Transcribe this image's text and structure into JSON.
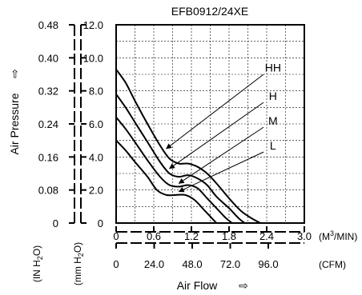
{
  "chart_data": {
    "type": "line",
    "title": "EFB0912/24XE",
    "ylabel": "Air Pressure",
    "ylabel_arrow": "⇨",
    "xlabel": "Air Flow",
    "xlabel_arrow": "⇨",
    "units": {
      "y_in": "(IN H2O)",
      "y_mm": "(mm H2O)",
      "x_m3": "(M3/MIN)",
      "x_cfm": "(CFM)"
    },
    "ylim": [
      0,
      12
    ],
    "xlim": [
      0,
      3.0
    ],
    "grid": true,
    "y_ticks_mm": [
      "12.0",
      "10.0",
      "8.0",
      "6.0",
      "4.0",
      "2.0",
      "0"
    ],
    "y_ticks_in": [
      "0.48",
      "0.40",
      "0.32",
      "0.24",
      "0.16",
      "0.08",
      "0"
    ],
    "x_ticks_m3": [
      "0",
      "0.6",
      "1.2",
      "1.8",
      "2.4",
      "3.0"
    ],
    "x_ticks_cfm": [
      "0",
      "24.0",
      "48.0",
      "72.0",
      "96.0"
    ],
    "series": [
      {
        "name": "HH",
        "points": [
          [
            0,
            9.3
          ],
          [
            0.15,
            8.5
          ],
          [
            0.3,
            7.4
          ],
          [
            0.5,
            6.0
          ],
          [
            0.7,
            4.7
          ],
          [
            0.85,
            3.9
          ],
          [
            1.0,
            3.6
          ],
          [
            1.15,
            3.6
          ],
          [
            1.3,
            3.4
          ],
          [
            1.45,
            3.0
          ],
          [
            1.6,
            2.4
          ],
          [
            1.8,
            1.5
          ],
          [
            2.0,
            0.7
          ],
          [
            2.2,
            0.2
          ],
          [
            2.3,
            0
          ]
        ]
      },
      {
        "name": "H",
        "points": [
          [
            0,
            7.8
          ],
          [
            0.15,
            7.0
          ],
          [
            0.3,
            6.1
          ],
          [
            0.5,
            4.9
          ],
          [
            0.7,
            3.7
          ],
          [
            0.85,
            3.0
          ],
          [
            1.0,
            2.8
          ],
          [
            1.15,
            2.9
          ],
          [
            1.3,
            2.7
          ],
          [
            1.45,
            2.3
          ],
          [
            1.6,
            1.6
          ],
          [
            1.8,
            0.9
          ],
          [
            1.95,
            0.3
          ],
          [
            2.05,
            0
          ]
        ]
      },
      {
        "name": "M",
        "points": [
          [
            0,
            6.4
          ],
          [
            0.15,
            5.7
          ],
          [
            0.3,
            4.9
          ],
          [
            0.5,
            3.8
          ],
          [
            0.7,
            2.8
          ],
          [
            0.85,
            2.3
          ],
          [
            1.0,
            2.2
          ],
          [
            1.15,
            2.3
          ],
          [
            1.3,
            2.1
          ],
          [
            1.45,
            1.5
          ],
          [
            1.6,
            0.9
          ],
          [
            1.75,
            0.3
          ],
          [
            1.85,
            0
          ]
        ]
      },
      {
        "name": "L",
        "points": [
          [
            0,
            5.0
          ],
          [
            0.15,
            4.4
          ],
          [
            0.3,
            3.7
          ],
          [
            0.5,
            2.8
          ],
          [
            0.65,
            2.0
          ],
          [
            0.8,
            1.7
          ],
          [
            0.95,
            1.7
          ],
          [
            1.1,
            1.7
          ],
          [
            1.25,
            1.4
          ],
          [
            1.4,
            0.8
          ],
          [
            1.55,
            0.2
          ],
          [
            1.6,
            0
          ]
        ]
      }
    ],
    "labels": [
      {
        "name": "HH",
        "x": 2.5,
        "y": 9.4
      },
      {
        "name": "H",
        "x": 2.5,
        "y": 7.7
      },
      {
        "name": "M",
        "x": 2.5,
        "y": 6.2
      },
      {
        "name": "L",
        "x": 2.5,
        "y": 4.7
      }
    ],
    "leaders": [
      {
        "from": [
          2.35,
          9.0
        ],
        "to": [
          0.8,
          4.5
        ]
      },
      {
        "from": [
          2.35,
          7.3
        ],
        "to": [
          0.85,
          3.3
        ]
      },
      {
        "from": [
          2.35,
          5.8
        ],
        "to": [
          1.0,
          2.4
        ]
      },
      {
        "from": [
          2.35,
          4.3
        ],
        "to": [
          1.0,
          1.9
        ]
      }
    ]
  }
}
